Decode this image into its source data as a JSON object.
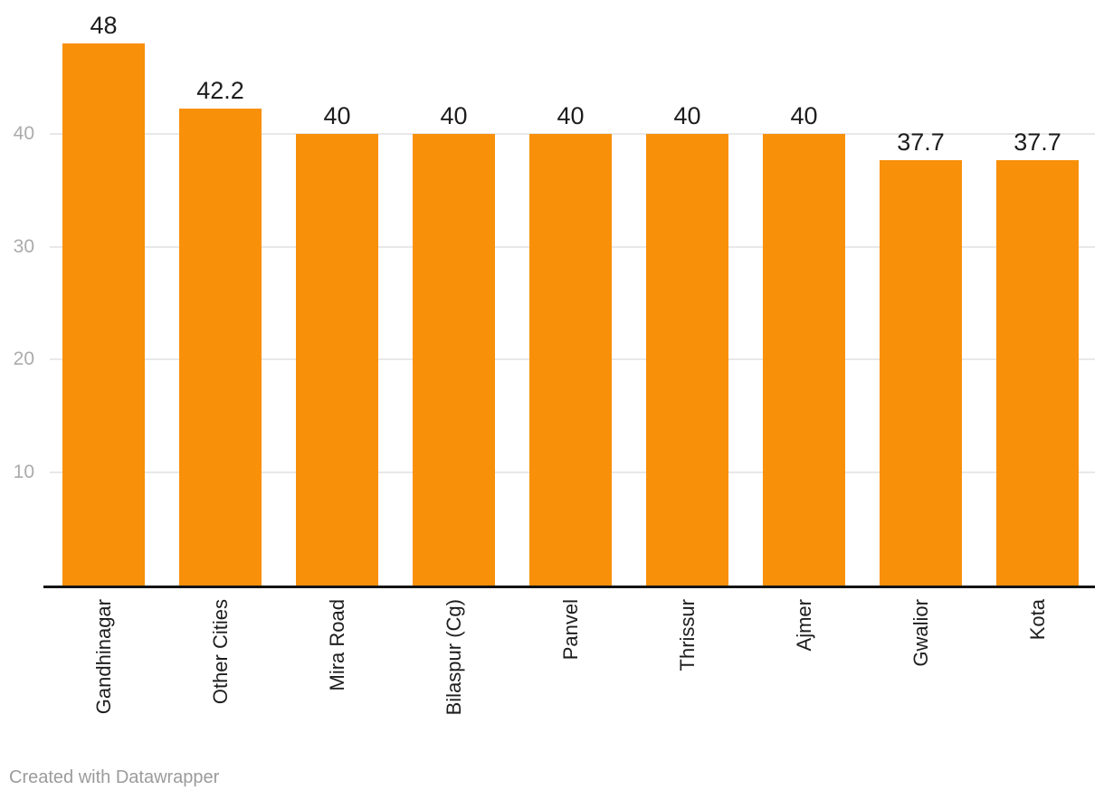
{
  "chart_data": {
    "type": "bar",
    "categories": [
      "Gandhinagar",
      "Other Cities",
      "Mira Road",
      "Bilaspur (Cg)",
      "Panvel",
      "Thrissur",
      "Ajmer",
      "Gwalior",
      "Kota"
    ],
    "values": [
      48,
      42.2,
      40,
      40,
      40,
      40,
      40,
      37.7,
      37.7
    ],
    "value_labels": [
      "48",
      "42.2",
      "40",
      "40",
      "40",
      "40",
      "40",
      "37.7",
      "37.7"
    ],
    "title": "",
    "xlabel": "",
    "ylabel": "",
    "yticks": [
      10,
      20,
      30,
      40
    ],
    "ytick_labels": [
      "10",
      "20",
      "30",
      "40"
    ],
    "ylim": [
      0,
      48
    ],
    "grid": "horizontal",
    "legend": false,
    "bar_color": "#f8900a",
    "grid_color": "#e8e8e8",
    "axis_line_color": "#141414",
    "ytick_color": "#ababab",
    "label_color": "#1d1d1d"
  },
  "footer": {
    "credit": "Created with Datawrapper"
  }
}
